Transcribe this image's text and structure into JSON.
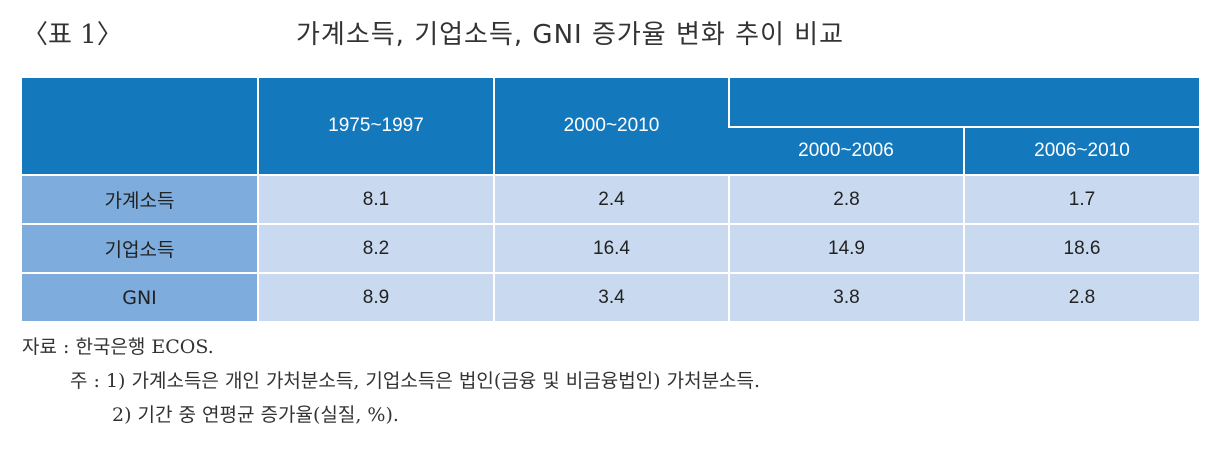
{
  "caption": {
    "label": "〈표 1〉",
    "title": "가계소득, 기업소득, GNI 증가율 변화 추이 비교"
  },
  "table": {
    "header": {
      "col1": "1975~1997",
      "col2": "2000~2010",
      "col3": "2000~2006",
      "col4": "2006~2010"
    },
    "rows": [
      {
        "label": "가계소득",
        "v1": "8.1",
        "v2": "2.4",
        "v3": "2.8",
        "v4": "1.7"
      },
      {
        "label": "기업소득",
        "v1": "8.2",
        "v2": "16.4",
        "v3": "14.9",
        "v4": "18.6"
      },
      {
        "label": "GNI",
        "v1": "8.9",
        "v2": "3.4",
        "v3": "3.8",
        "v4": "2.8"
      }
    ]
  },
  "notes": {
    "source": "자료 : 한국은행 ECOS.",
    "note1": "주 : 1) 가계소득은 개인 가처분소득, 기업소득은 법인(금융 및 비금융법인) 가처분소득.",
    "note2": "2) 기간 중 연평균 증가율(실질, %)."
  },
  "colors": {
    "header_blue": "#1478bd",
    "rowhead_blue": "#7eacdc",
    "cell_light": "#c9d9ef"
  }
}
